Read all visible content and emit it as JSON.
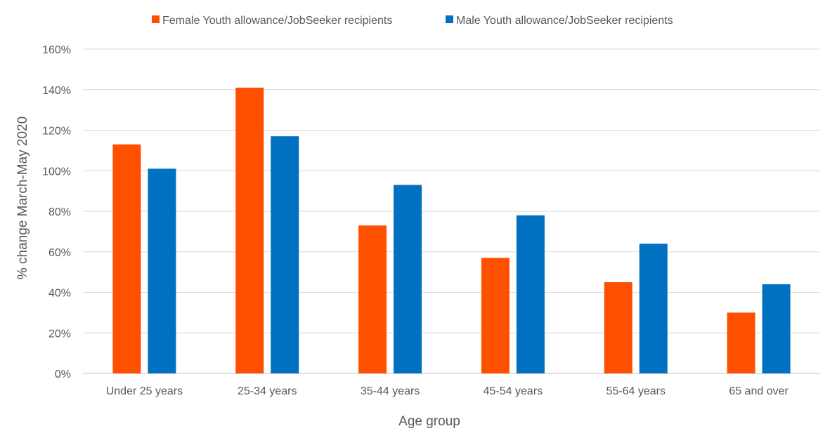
{
  "chart_data": {
    "type": "bar",
    "title": "",
    "xlabel": "Age group",
    "ylabel": "% change March-May 2020",
    "categories": [
      "Under 25 years",
      "25-34 years",
      "35-44 years",
      "45-54 years",
      "55-64 years",
      "65 and over"
    ],
    "series": [
      {
        "name": "Female Youth allowance/JobSeeker recipients",
        "color": "#FF5000",
        "values": [
          113,
          141,
          73,
          57,
          45,
          30
        ]
      },
      {
        "name": "Male Youth allowance/JobSeeker recipients",
        "color": "#0070C0",
        "values": [
          101,
          117,
          93,
          78,
          64,
          44
        ]
      }
    ],
    "ylim": [
      0,
      160
    ],
    "yticks": [
      0,
      20,
      40,
      60,
      80,
      100,
      120,
      140,
      160
    ],
    "ytick_format": "percent",
    "grid": true,
    "legend_position": "top-center"
  }
}
